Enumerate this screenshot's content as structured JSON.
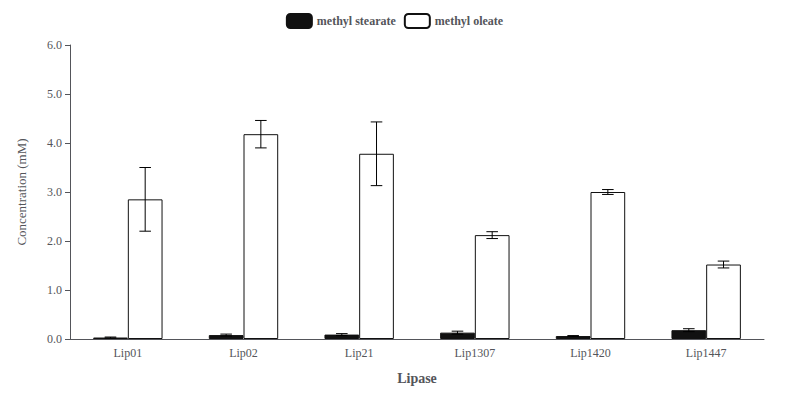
{
  "chart_data": {
    "type": "bar",
    "xlabel": "Lipase",
    "ylabel": "Concentration (mM)",
    "categories": [
      "Lip01",
      "Lip02",
      "Lip21",
      "Lip1307",
      "Lip1420",
      "Lip1447"
    ],
    "series": [
      {
        "name": "methyl stearate",
        "color": "#111111",
        "values": [
          0.03,
          0.08,
          0.09,
          0.13,
          0.06,
          0.18
        ],
        "errors": [
          0.01,
          0.02,
          0.02,
          0.03,
          0.01,
          0.03
        ]
      },
      {
        "name": "methyl oleate",
        "color": "#ffffff",
        "values": [
          2.85,
          4.18,
          3.78,
          2.12,
          3.0,
          1.52
        ],
        "errors": [
          0.65,
          0.28,
          0.65,
          0.07,
          0.05,
          0.07
        ]
      }
    ],
    "ylim": [
      0,
      6.0
    ],
    "yticks": [
      {
        "value": 0,
        "label": "0.0"
      },
      {
        "value": 1,
        "label": "1.0"
      },
      {
        "value": 2,
        "label": "2.0"
      },
      {
        "value": 3,
        "label": "3.0"
      },
      {
        "value": 4,
        "label": "4.0"
      },
      {
        "value": 5,
        "label": "5.0"
      },
      {
        "value": 6,
        "label": "6.0"
      }
    ],
    "grid": false,
    "legend": "upper center"
  }
}
